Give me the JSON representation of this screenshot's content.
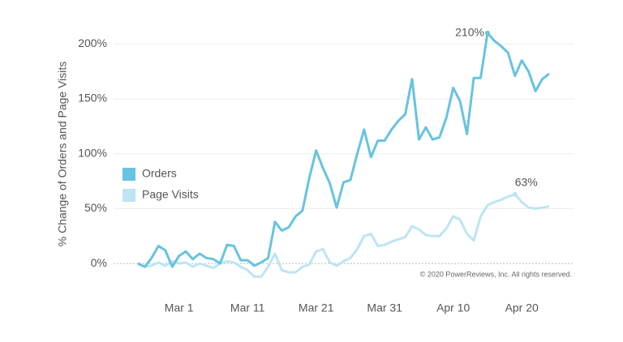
{
  "chart_data": {
    "type": "line",
    "ylabel": "% Change of Orders and Page Visits",
    "note": "© 2020 PowerReviews, Inc. All rights reserved.",
    "categories": [
      null,
      null,
      null,
      null,
      null,
      null,
      "Mar 1",
      null,
      null,
      null,
      null,
      null,
      null,
      null,
      null,
      null,
      "Mar 11",
      null,
      null,
      null,
      null,
      null,
      null,
      null,
      null,
      null,
      "Mar 21",
      null,
      null,
      null,
      null,
      null,
      null,
      null,
      null,
      null,
      "Mar 31",
      null,
      null,
      null,
      null,
      null,
      null,
      null,
      null,
      null,
      "Apr 10",
      null,
      null,
      null,
      null,
      null,
      null,
      null,
      null,
      null,
      "Apr 20",
      null,
      null,
      null,
      null
    ],
    "series": [
      {
        "name": "Orders",
        "color": "#67c3e0",
        "values": [
          0,
          -3,
          5,
          16,
          12,
          -3,
          7,
          11,
          4,
          9,
          5,
          4,
          0,
          17,
          16,
          3,
          3,
          -2,
          1,
          5,
          38,
          30,
          33,
          43,
          48,
          78,
          103,
          87,
          73,
          51,
          74,
          76,
          100,
          122,
          97,
          112,
          112,
          122,
          130,
          136,
          168,
          113,
          124,
          113,
          115,
          133,
          160,
          148,
          118,
          169,
          169,
          210,
          203,
          198,
          192,
          171,
          185,
          175,
          157,
          168,
          173
        ],
        "value_labels": [
          null,
          null,
          null,
          null,
          null,
          null,
          null,
          null,
          null,
          null,
          null,
          null,
          null,
          null,
          null,
          null,
          null,
          null,
          null,
          null,
          null,
          null,
          null,
          null,
          null,
          null,
          null,
          null,
          null,
          null,
          null,
          null,
          null,
          null,
          null,
          null,
          null,
          null,
          null,
          null,
          null,
          null,
          null,
          null,
          null,
          null,
          null,
          null,
          null,
          null,
          null,
          "210%",
          null,
          null,
          null,
          null,
          null,
          null,
          null,
          null,
          null
        ]
      },
      {
        "name": "Page Visits",
        "color": "#bde5f3",
        "values": [
          0,
          -3,
          -2,
          1,
          -2,
          2,
          0,
          1,
          -3,
          0,
          -2,
          -4,
          0,
          2,
          1,
          -3,
          -6,
          -12,
          -12,
          -3,
          9,
          -6,
          -8,
          -8,
          -3,
          -1,
          11,
          13,
          1,
          -2,
          2,
          5,
          13,
          25,
          27,
          16,
          17,
          20,
          22,
          24,
          34,
          31,
          26,
          25,
          25,
          32,
          43,
          40,
          27,
          21,
          43,
          53,
          56,
          58,
          61,
          63,
          56,
          51,
          50,
          51,
          52
        ],
        "value_labels": [
          null,
          null,
          null,
          null,
          null,
          null,
          null,
          null,
          null,
          null,
          null,
          null,
          null,
          null,
          null,
          null,
          null,
          null,
          null,
          null,
          null,
          null,
          null,
          null,
          null,
          null,
          null,
          null,
          null,
          null,
          null,
          null,
          null,
          null,
          null,
          null,
          null,
          null,
          null,
          null,
          null,
          null,
          null,
          null,
          null,
          null,
          null,
          null,
          null,
          null,
          null,
          null,
          null,
          null,
          null,
          "63%",
          null,
          null,
          null,
          null,
          null
        ]
      }
    ],
    "ylim": [
      -25,
      215
    ],
    "yticks": [
      {
        "value": 0,
        "label": "0%"
      },
      {
        "value": 50,
        "label": "50%"
      },
      {
        "value": 100,
        "label": "100%"
      },
      {
        "value": 150,
        "label": "150%"
      },
      {
        "value": 200,
        "label": "200%"
      }
    ],
    "grid": true,
    "legend": "left"
  }
}
